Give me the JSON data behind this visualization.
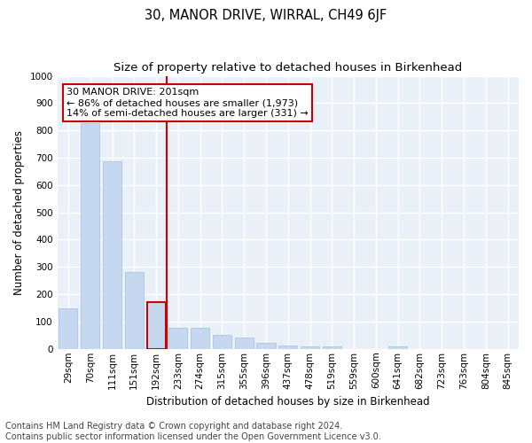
{
  "title": "30, MANOR DRIVE, WIRRAL, CH49 6JF",
  "subtitle": "Size of property relative to detached houses in Birkenhead",
  "xlabel": "Distribution of detached houses by size in Birkenhead",
  "ylabel": "Number of detached properties",
  "categories": [
    "29sqm",
    "70sqm",
    "111sqm",
    "151sqm",
    "192sqm",
    "233sqm",
    "274sqm",
    "315sqm",
    "355sqm",
    "396sqm",
    "437sqm",
    "478sqm",
    "519sqm",
    "559sqm",
    "600sqm",
    "641sqm",
    "682sqm",
    "723sqm",
    "763sqm",
    "804sqm",
    "845sqm"
  ],
  "values": [
    148,
    828,
    688,
    280,
    172,
    78,
    78,
    50,
    40,
    22,
    12,
    8,
    8,
    0,
    0,
    10,
    0,
    0,
    0,
    0,
    0
  ],
  "bar_color": "#c5d8f0",
  "bar_edge_color": "#a0c0e0",
  "highlight_bar_index": 4,
  "highlight_bar_edge_color": "#cc0000",
  "vline_color": "#cc0000",
  "vline_x": 4.5,
  "annotation_text": "30 MANOR DRIVE: 201sqm\n← 86% of detached houses are smaller (1,973)\n14% of semi-detached houses are larger (331) →",
  "annotation_box_edgecolor": "#cc0000",
  "annotation_bg_color": "#ffffff",
  "ylim": [
    0,
    1000
  ],
  "yticks": [
    0,
    100,
    200,
    300,
    400,
    500,
    600,
    700,
    800,
    900,
    1000
  ],
  "background_color": "#eaf0f8",
  "grid_color": "#ffffff",
  "footer_line1": "Contains HM Land Registry data © Crown copyright and database right 2024.",
  "footer_line2": "Contains public sector information licensed under the Open Government Licence v3.0.",
  "title_fontsize": 10.5,
  "subtitle_fontsize": 9.5,
  "tick_fontsize": 7.5,
  "ylabel_fontsize": 8.5,
  "xlabel_fontsize": 8.5,
  "annotation_fontsize": 8,
  "footer_fontsize": 7
}
